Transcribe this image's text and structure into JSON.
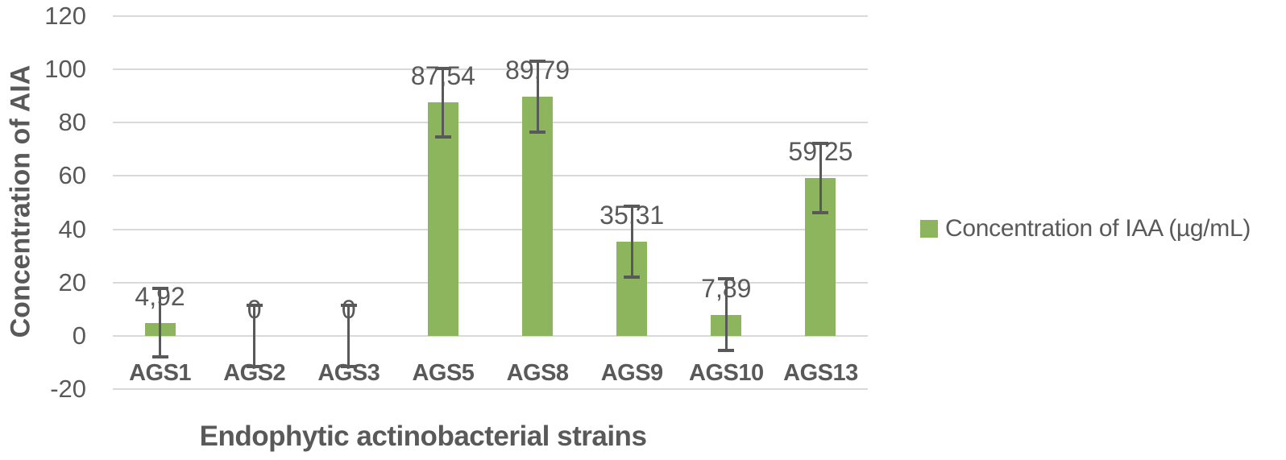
{
  "chart_data": {
    "type": "bar",
    "title": "",
    "categories": [
      "AGS1",
      "AGS2",
      "AGS3",
      "AGS5",
      "AGS8",
      "AGS9",
      "AGS10",
      "AGS13"
    ],
    "series": [
      {
        "name": "Concentration of IAA (µg/mL)",
        "values": [
          4.92,
          0,
          0,
          87.54,
          89.79,
          35.31,
          7.89,
          59.25
        ],
        "data_labels": [
          "4,92",
          "0",
          "0",
          "87,54",
          "89,79",
          "35,31",
          "7,89",
          "59,25"
        ],
        "error_bars": [
          13.5,
          12,
          12,
          13.5,
          13.8,
          13.9,
          14,
          13.5
        ],
        "color": "#8CB55E"
      }
    ],
    "xlabel": "Endophytic actinobacterial strains",
    "ylabel": "Concentration of AIA",
    "ylim": [
      -20,
      120
    ],
    "yticks": [
      120,
      100,
      80,
      60,
      40,
      20,
      0,
      -20
    ],
    "grid": "horizontal",
    "legend": {
      "position": "right",
      "entries": [
        {
          "label": "Concentration of IAA (µg/mL)",
          "color": "#8CB55E"
        }
      ]
    },
    "colors": {
      "bar": "#8CB55E",
      "gridline": "#D9D9D9",
      "text": "#595959",
      "error_bar": "#595959",
      "background": "#FFFFFF"
    }
  }
}
